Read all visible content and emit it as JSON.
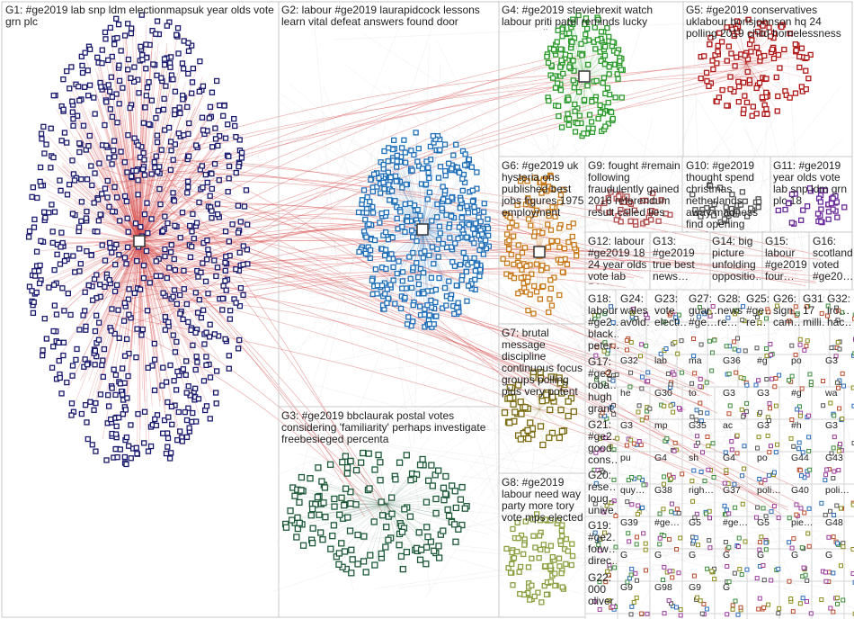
{
  "groups": [
    {
      "id": "G1",
      "label": "G1: #ge2019 lab snp ldm electionmapsuk year olds vote grn plc",
      "color": "#1a1a6e"
    },
    {
      "id": "G2",
      "label": "G2: labour #ge2019 laurapidcock lessons learn vital defeat answers found door",
      "color": "#1f6fb8"
    },
    {
      "id": "G3",
      "label": "G3: #ge2019 bbclaurak postal votes considering 'familiarity' perhaps investigate freebesieged percenta",
      "color": "#1e5a3a"
    },
    {
      "id": "G4",
      "label": "G4: #ge2019 steviebrexit watch labour priti patel reminds lucky escape diane",
      "color": "#2a9a2a"
    },
    {
      "id": "G5",
      "label": "G5: #ge2019 conservatives uklabour borisjohnson hq 24 polling 2019 child homelessness",
      "color": "#b01818"
    },
    {
      "id": "G6",
      "label": "G6: #ge2019 uk hysteria ons published best jobs figures 1975 employment",
      "color": "#c87a1a"
    },
    {
      "id": "G7",
      "label": "G7: brutal message discipline continuous focus groups polling plus very potent",
      "color": "#7a6a10"
    },
    {
      "id": "G8",
      "label": "G8: #ge2019 labour need way party more tory vote mps elected",
      "color": "#8aa040"
    },
    {
      "id": "G9",
      "label": "G9: fought #remain following fraudulently gained 2016 referendum result called lies",
      "color": "#b04a4a"
    },
    {
      "id": "G10",
      "label": "G10: #ge2019 thought spend christmas netherlands away madness find opening local",
      "color": "#555555"
    },
    {
      "id": "G11",
      "label": "G11: #ge2019 year olds vote lab snp ldm grn plc 18",
      "color": "#6a2a9a"
    },
    {
      "id": "G12",
      "label": "G12: labour #ge2019 18 24 year olds vote lab 544…",
      "color": "#666666"
    },
    {
      "id": "G13",
      "label": "G13: #ge2019 true best news…",
      "color": "#666666"
    },
    {
      "id": "G14",
      "label": "G14: big picture unfolding oppositio…",
      "color": "#666666"
    },
    {
      "id": "G15",
      "label": "G15: labour #ge2019 four…",
      "color": "#666666"
    },
    {
      "id": "G16",
      "label": "G16: scotland voted #ge20…",
      "color": "#666666"
    },
    {
      "id": "G17",
      "label": "G17: #ge2… roba… hugh grant…",
      "color": "#666666"
    },
    {
      "id": "G18",
      "label": "G18: labour #ge2… black… peter…",
      "color": "#666666"
    },
    {
      "id": "G19",
      "label": "G19: #ge2… forw… direc…",
      "color": "#666666"
    },
    {
      "id": "G20",
      "label": "G20: rese… loug… unive…",
      "color": "#666666"
    },
    {
      "id": "G21",
      "label": "G21: #ge2… good… cons…",
      "color": "#666666"
    },
    {
      "id": "G22",
      "label": "G22: 000 oliver…",
      "color": "#666666"
    },
    {
      "id": "G23",
      "label": "G23: vote electi…",
      "color": "#666666"
    },
    {
      "id": "G24",
      "label": "G24: wales avoid…",
      "color": "#666666"
    },
    {
      "id": "G25",
      "label": "G25: #ge… re…",
      "color": "#666666"
    },
    {
      "id": "G26",
      "label": "G26: sign… cam…",
      "color": "#666666"
    },
    {
      "id": "G27",
      "label": "G27: guar… #ge…",
      "color": "#666666"
    },
    {
      "id": "G28",
      "label": "G28: news re…",
      "color": "#666666"
    },
    {
      "id": "G31",
      "label": "G31: 17 milli…",
      "color": "#666666"
    },
    {
      "id": "G32",
      "label": "G32: iro… hac…",
      "color": "#666666"
    }
  ],
  "small_labels": [
    "G32",
    "lab",
    "ma",
    "G36",
    "#g",
    "po",
    "G3",
    "he",
    "G30",
    "to",
    "G3",
    "G3",
    "#g",
    "wa",
    "G3",
    "mp",
    "G35",
    "ac",
    "G3",
    "#h",
    "G3",
    "pu",
    "G4",
    "sh",
    "G4",
    "po",
    "G44",
    "G43",
    "quy…",
    "G38",
    "righ…",
    "G37",
    "poli…",
    "G40",
    "poli…",
    "G39",
    "#ge…",
    "G5",
    "#ge…",
    "G5",
    "pie…",
    "G48",
    "G",
    "G",
    "G",
    "G",
    "G",
    "G",
    "G",
    "G9",
    "G98",
    "G9",
    "G"
  ]
}
